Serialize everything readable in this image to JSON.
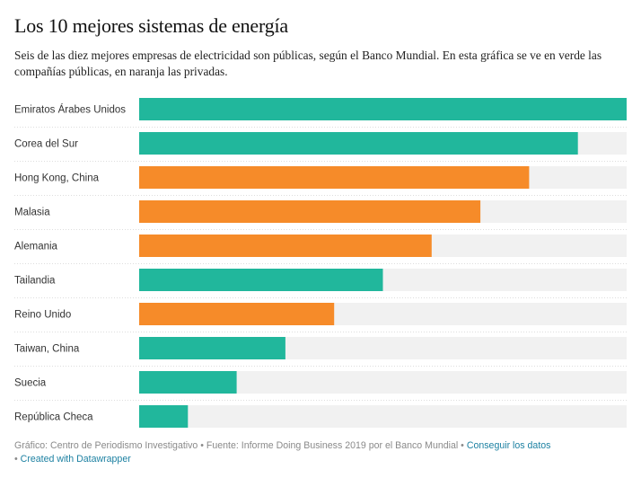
{
  "title": "Los 10 mejores sistemas de energía",
  "subtitle": "Seis de las diez mejores empresas de electricidad son públicas, según el Banco Mundial. En esta gráfica se ve en verde las compañías públicas, en naranja las privadas.",
  "colors": {
    "public": "#21b79c",
    "private": "#f68b29",
    "track": "#f1f1f1",
    "divider": "#dddddd"
  },
  "chart_data": {
    "type": "bar",
    "orientation": "horizontal",
    "title": "Los 10 mejores sistemas de energía",
    "categories": [
      "Emiratos Árabes Unidos",
      "Corea del Sur",
      "Hong Kong, China",
      "Malasia",
      "Alemania",
      "Tailandia",
      "Reino Unido",
      "Taiwan, China",
      "Suecia",
      "República Checa"
    ],
    "values": [
      10,
      9,
      8,
      7,
      6,
      5,
      4,
      3,
      2,
      1
    ],
    "ownership": [
      "public",
      "public",
      "private",
      "private",
      "private",
      "public",
      "private",
      "public",
      "public",
      "public"
    ],
    "xlim": [
      0,
      10
    ],
    "legend": {
      "public": "públicas (verde)",
      "private": "privadas (naranja)"
    }
  },
  "footer": {
    "credit": "Gráfico: Centro de Periodismo Investigativo • Fuente: Informe Doing Business 2019 por el Banco Mundial • ",
    "get_data": "Conseguir los datos",
    "sep": " • ",
    "created_with": "Created with Datawrapper"
  }
}
